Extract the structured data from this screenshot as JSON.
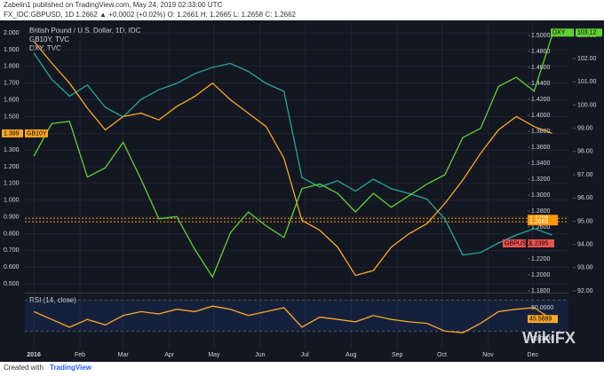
{
  "header": {
    "author": "Zabelin1 published on TradingView.com, May 24, 2019 02:33:00 UTC",
    "symbol": "FX_IDC:GBPUSD, 1D  1.2662 ▲ +0.0002 (+0.02%)  O: 1.2661  H: 1.2665  L: 1.2658  C: 1.2662"
  },
  "footer": {
    "text": "Created with",
    "brand": "TradingView"
  },
  "watermark": "WikiFX",
  "chart_data": [
    {
      "type": "line",
      "x": [
        0,
        12,
        24,
        36,
        48,
        60,
        72,
        84,
        96,
        108,
        120,
        132,
        144,
        156,
        168,
        180,
        192,
        204,
        216,
        228,
        240,
        252,
        264,
        276,
        288,
        300,
        312,
        324,
        336,
        348
      ],
      "xlim": [
        -6,
        359
      ],
      "xticks": [
        {
          "value": 0,
          "label": "2016"
        },
        {
          "value": 31,
          "label": "Feb"
        },
        {
          "value": 60,
          "label": "Mar"
        },
        {
          "value": 91,
          "label": "Apr"
        },
        {
          "value": 121,
          "label": "May"
        },
        {
          "value": 152,
          "label": "Jun"
        },
        {
          "value": 182,
          "label": "Jul"
        },
        {
          "value": 213,
          "label": "Aug"
        },
        {
          "value": 244,
          "label": "Sep"
        },
        {
          "value": 274,
          "label": "Oct"
        },
        {
          "value": 305,
          "label": "Nov"
        },
        {
          "value": 335,
          "label": "Dec"
        }
      ],
      "ylim": [
        0.458,
        2.064
      ],
      "yticks": [
        {
          "value": 2.0,
          "label": "2.000"
        },
        {
          "value": 1.9,
          "label": "1.900"
        },
        {
          "value": 1.8,
          "label": "1.800"
        },
        {
          "value": 1.7,
          "label": "1.700"
        },
        {
          "value": 1.6,
          "label": "1.600"
        },
        {
          "value": 1.5,
          "label": "1.500"
        },
        {
          "value": 1.4,
          "label": "1.400"
        },
        {
          "value": 1.3,
          "label": "1.300"
        },
        {
          "value": 1.2,
          "label": "1.200"
        },
        {
          "value": 1.1,
          "label": "1.100"
        },
        {
          "value": 1.0,
          "label": "1.000"
        },
        {
          "value": 0.9,
          "label": "0.900"
        },
        {
          "value": 0.8,
          "label": "0.800"
        },
        {
          "value": 0.7,
          "label": "0.700"
        },
        {
          "value": 0.6,
          "label": "0.600"
        },
        {
          "value": 0.5,
          "label": "0.500"
        }
      ],
      "y2lim": [
        1.18,
        1.5167
      ],
      "y2ticks": [
        {
          "value": 1.5,
          "label": "1.5000"
        },
        {
          "value": 1.48,
          "label": "1.4800"
        },
        {
          "value": 1.46,
          "label": "1.4600"
        },
        {
          "value": 1.44,
          "label": "1.4400"
        },
        {
          "value": 1.42,
          "label": "1.4200"
        },
        {
          "value": 1.4,
          "label": "1.4000"
        },
        {
          "value": 1.38,
          "label": "1.3800"
        },
        {
          "value": 1.36,
          "label": "1.3600"
        },
        {
          "value": 1.34,
          "label": "1.3400"
        },
        {
          "value": 1.32,
          "label": "1.3200"
        },
        {
          "value": 1.3,
          "label": "1.3000"
        },
        {
          "value": 1.28,
          "label": "1.2800"
        },
        {
          "value": 1.26,
          "label": "1.2600"
        },
        {
          "value": 1.24,
          "label": "1.2400"
        },
        {
          "value": 1.22,
          "label": "1.2200"
        },
        {
          "value": 1.2,
          "label": "1.2000"
        },
        {
          "value": 1.18,
          "label": "1.1800"
        }
      ],
      "y3lim": [
        92.0,
        103.57
      ],
      "y3ticks": [
        {
          "value": 103,
          "label": "103.00"
        },
        {
          "value": 102,
          "label": "102.00"
        },
        {
          "value": 101,
          "label": "101.00"
        },
        {
          "value": 100,
          "label": "100.00"
        },
        {
          "value": 99,
          "label": "99.00"
        },
        {
          "value": 98,
          "label": "98.00"
        },
        {
          "value": 97,
          "label": "97.00"
        },
        {
          "value": 96,
          "label": "96.00"
        },
        {
          "value": 95,
          "label": "95.00"
        },
        {
          "value": 94,
          "label": "94.00"
        },
        {
          "value": 93,
          "label": "93.00"
        },
        {
          "value": 92,
          "label": "92.00"
        }
      ],
      "series": [
        {
          "name": "British Pound / U.S. Dollar, 1D, IDC",
          "color": "#26a69a",
          "axis": "y2",
          "values": [
            1.478,
            1.445,
            1.424,
            1.438,
            1.41,
            1.398,
            1.42,
            1.432,
            1.44,
            1.452,
            1.46,
            1.465,
            1.455,
            1.44,
            1.43,
            1.322,
            1.31,
            1.318,
            1.305,
            1.32,
            1.308,
            1.302,
            1.295,
            1.27,
            1.225,
            1.228,
            1.24,
            1.25,
            1.258,
            1.25
          ]
        },
        {
          "name": "GB10Y, TVC",
          "color": "#f9a825",
          "axis": "y",
          "values": [
            1.95,
            1.82,
            1.7,
            1.55,
            1.42,
            1.5,
            1.52,
            1.48,
            1.56,
            1.62,
            1.7,
            1.6,
            1.52,
            1.44,
            1.25,
            0.88,
            0.82,
            0.72,
            0.55,
            0.58,
            0.72,
            0.8,
            0.86,
            0.98,
            1.12,
            1.28,
            1.42,
            1.5,
            1.44,
            1.4
          ]
        },
        {
          "name": "DXY, TVC",
          "color": "#5fd132",
          "axis": "y3",
          "values": [
            97.8,
            99.2,
            99.3,
            96.9,
            97.3,
            98.4,
            96.8,
            95.1,
            95.2,
            93.8,
            92.6,
            94.5,
            95.4,
            94.8,
            94.3,
            96.4,
            96.6,
            96.2,
            95.4,
            96.2,
            95.6,
            96.1,
            96.6,
            97.0,
            98.6,
            99.0,
            100.8,
            101.2,
            100.6,
            103.0
          ]
        }
      ],
      "levels": [
        1.2709,
        1.2665
      ],
      "levels_color": "#ff9800",
      "price_tags": [
        {
          "name": "GB10Y",
          "value": 1.399,
          "axis": "y",
          "color": "#f9a825"
        },
        {
          "name": "DXY",
          "value": 103.12,
          "axis": "y3",
          "color": "#5fd132"
        },
        {
          "name": "GBPUSD",
          "value": 1.2395,
          "axis": "y2",
          "color": "#ef5350"
        }
      ]
    },
    {
      "type": "line",
      "title": "RSI (14, close)",
      "ylim": [
        7.8,
        77
      ],
      "yticks": [
        {
          "value": 60,
          "label": "60.0000"
        },
        {
          "value": 20,
          "label": "20.0000"
        }
      ],
      "band": [
        30,
        70
      ],
      "color": "#f9a825",
      "values": [
        55,
        45,
        35,
        45,
        38,
        50,
        55,
        52,
        58,
        55,
        62,
        58,
        50,
        55,
        60,
        35,
        48,
        45,
        42,
        50,
        45,
        42,
        40,
        30,
        28,
        40,
        55,
        58,
        60,
        45
      ],
      "last_value": 45.5889
    }
  ]
}
